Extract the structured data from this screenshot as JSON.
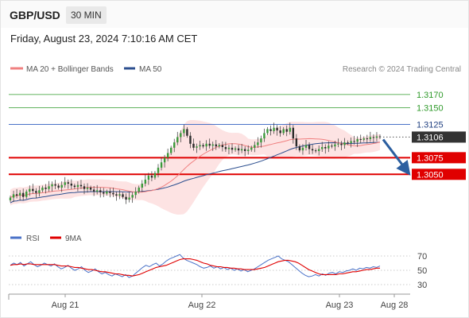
{
  "header": {
    "pair": "GBP/USD",
    "timeframe": "30 MIN"
  },
  "datetime": "Friday, August 23, 2024 7:10:16 AM CET",
  "legend": {
    "ma20": "MA 20 + Bollinger Bands",
    "ma50": "MA 50",
    "credit": "Research © 2024 Trading Central",
    "rsi": "RSI",
    "ma9": "9MA"
  },
  "colors": {
    "support": "#e00000",
    "resistance": "#2f9a2a",
    "pivot": "#4a72c8",
    "ma20": "#f08080",
    "ma50": "#2c4f8f",
    "rsi": "#4a72c8",
    "ma9": "#e00000",
    "arrow": "#2c5fa0"
  },
  "chart_data": [
    {
      "type": "line",
      "subtype": "candlestick",
      "x_labels": [
        "Aug 21",
        "Aug 22",
        "Aug 23",
        "Aug 28"
      ],
      "ylim": [
        1.2975,
        1.3195
      ],
      "levels": [
        {
          "value": 1.317,
          "label": "1.3170",
          "kind": "resistance"
        },
        {
          "value": 1.315,
          "label": "1.3150",
          "kind": "resistance"
        },
        {
          "value": 1.3125,
          "label": "1.3125",
          "kind": "pivot"
        },
        {
          "value": 1.3106,
          "label": "1.3106",
          "kind": "last"
        },
        {
          "value": 1.3075,
          "label": "1.3075",
          "kind": "support"
        },
        {
          "value": 1.305,
          "label": "1.3050",
          "kind": "support"
        }
      ],
      "close": [
        1.3015,
        1.302,
        1.3018,
        1.3022,
        1.3016,
        1.3024,
        1.3028,
        1.3025,
        1.3022,
        1.3026,
        1.303,
        1.3028,
        1.3032,
        1.3035,
        1.3033,
        1.303,
        1.3034,
        1.3038,
        1.3036,
        1.3033,
        1.3031,
        1.3034,
        1.3032,
        1.3028,
        1.303,
        1.3027,
        1.3024,
        1.3026,
        1.3023,
        1.3021,
        1.3024,
        1.3022,
        1.302,
        1.3018,
        1.302,
        1.3016,
        1.3012,
        1.3015,
        1.3019,
        1.3024,
        1.303,
        1.3036,
        1.3042,
        1.3048,
        1.3045,
        1.3052,
        1.306,
        1.3068,
        1.3075,
        1.3082,
        1.309,
        1.3098,
        1.3106,
        1.3112,
        1.3118,
        1.3108,
        1.3096,
        1.309,
        1.3092,
        1.3094,
        1.3092,
        1.3096,
        1.3093,
        1.3095,
        1.3092,
        1.3094,
        1.3091,
        1.3088,
        1.309,
        1.3087,
        1.3089,
        1.3086,
        1.3088,
        1.3085,
        1.3087,
        1.309,
        1.3094,
        1.3098,
        1.3104,
        1.3112,
        1.3118,
        1.3115,
        1.312,
        1.3116,
        1.3112,
        1.3118,
        1.3114,
        1.312,
        1.3104,
        1.3092,
        1.3086,
        1.309,
        1.3094,
        1.3088,
        1.3086,
        1.3085,
        1.3088,
        1.3091,
        1.3089,
        1.3093,
        1.3092,
        1.3095,
        1.3096,
        1.3094,
        1.3098,
        1.3097,
        1.31,
        1.3099,
        1.3103,
        1.3102,
        1.3104,
        1.3103,
        1.3106,
        1.3105,
        1.3107,
        1.3106
      ],
      "forecast": {
        "from": 1.3106,
        "to": 1.3052,
        "direction": "down"
      }
    },
    {
      "type": "line",
      "ylim": [
        20,
        80
      ],
      "ticks": [
        70,
        50,
        30
      ],
      "rsi": [
        57,
        60,
        58,
        61,
        56,
        59,
        62,
        58,
        55,
        57,
        60,
        58,
        56,
        59,
        55,
        52,
        54,
        57,
        53,
        50,
        52,
        55,
        50,
        47,
        49,
        52,
        48,
        45,
        47,
        44,
        42,
        45,
        43,
        41,
        44,
        40,
        42,
        46,
        50,
        54,
        57,
        55,
        58,
        60,
        56,
        59,
        63,
        66,
        68,
        70,
        72,
        67,
        64,
        62,
        60,
        58,
        55,
        53,
        54,
        56,
        53,
        55,
        52,
        54,
        51,
        53,
        50,
        52,
        49,
        51,
        48,
        50,
        52,
        55,
        58,
        61,
        64,
        66,
        68,
        70,
        66,
        64,
        62,
        58,
        54,
        50,
        46,
        43,
        41,
        42,
        44,
        42,
        45,
        43,
        46,
        47,
        45,
        48,
        47,
        49,
        50,
        52,
        50,
        53,
        52,
        54,
        53,
        55,
        54,
        56
      ],
      "ma9": [
        57,
        58,
        58,
        59,
        58,
        59,
        59,
        58,
        58,
        58,
        58,
        58,
        58,
        58,
        57,
        56,
        56,
        56,
        55,
        54,
        54,
        53,
        52,
        51,
        51,
        50,
        49,
        48,
        48,
        47,
        46,
        45,
        45,
        44,
        43,
        43,
        42,
        43,
        44,
        46,
        48,
        50,
        52,
        54,
        55,
        56,
        57,
        59,
        61,
        63,
        65,
        66,
        66,
        66,
        65,
        64,
        62,
        60,
        59,
        57,
        56,
        55,
        55,
        54,
        54,
        53,
        53,
        52,
        52,
        51,
        51,
        51,
        51,
        52,
        53,
        54,
        56,
        58,
        60,
        62,
        63,
        64,
        64,
        63,
        62,
        60,
        57,
        54,
        51,
        49,
        47,
        45,
        44,
        44,
        44,
        44,
        44,
        45,
        45,
        46,
        47,
        48,
        48,
        49,
        50,
        51,
        51,
        52,
        53,
        53
      ]
    }
  ]
}
